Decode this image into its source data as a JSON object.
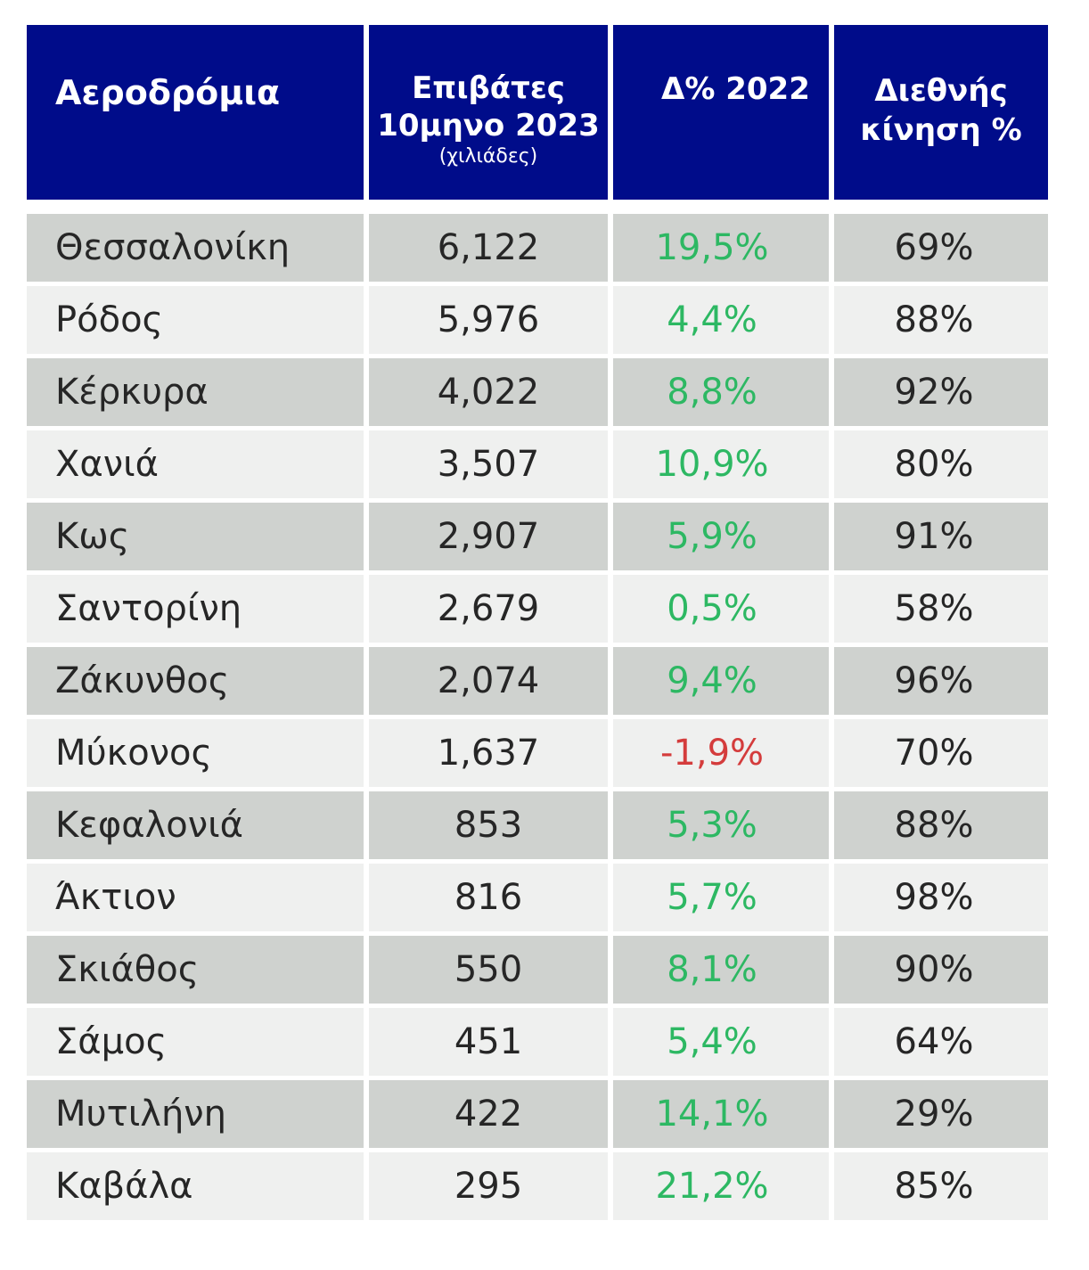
{
  "colors": {
    "header_bg": "#000c8a",
    "header_text": "#ffffff",
    "row_dark": "#cfd2cf",
    "row_light": "#eff0ef",
    "positive": "#2db863",
    "negative": "#d43c3c",
    "body_text": "#262626"
  },
  "chart_data": {
    "type": "table",
    "columns": [
      {
        "label": "Αεροδρόμια"
      },
      {
        "label_line1": "Επιβάτες",
        "label_line2": "10μηνο 2023",
        "unit": "(χιλιάδες)"
      },
      {
        "label": "Δ% 2022"
      },
      {
        "label_line1": "Διεθνής",
        "label_line2": "κίνηση %"
      }
    ],
    "rows": [
      {
        "airport": "Θεσσαλονίκη",
        "passengers": "6,122",
        "delta": "19,5%",
        "intl": "69%"
      },
      {
        "airport": "Ρόδος",
        "passengers": "5,976",
        "delta": "4,4%",
        "intl": "88%"
      },
      {
        "airport": "Κέρκυρα",
        "passengers": "4,022",
        "delta": "8,8%",
        "intl": "92%"
      },
      {
        "airport": "Χανιά",
        "passengers": "3,507",
        "delta": "10,9%",
        "intl": "80%"
      },
      {
        "airport": "Κως",
        "passengers": "2,907",
        "delta": "5,9%",
        "intl": "91%"
      },
      {
        "airport": "Σαντορίνη",
        "passengers": "2,679",
        "delta": "0,5%",
        "intl": "58%"
      },
      {
        "airport": "Ζάκυνθος",
        "passengers": "2,074",
        "delta": "9,4%",
        "intl": "96%"
      },
      {
        "airport": "Μύκονος",
        "passengers": "1,637",
        "delta": "-1,9%",
        "intl": "70%"
      },
      {
        "airport": "Κεφαλονιά",
        "passengers": "853",
        "delta": "5,3%",
        "intl": "88%"
      },
      {
        "airport": "Άκτιον",
        "passengers": "816",
        "delta": "5,7%",
        "intl": "98%"
      },
      {
        "airport": "Σκιάθος",
        "passengers": "550",
        "delta": "8,1%",
        "intl": "90%"
      },
      {
        "airport": "Σάμος",
        "passengers": "451",
        "delta": "5,4%",
        "intl": "64%"
      },
      {
        "airport": "Μυτιλήνη",
        "passengers": "422",
        "delta": "14,1%",
        "intl": "29%"
      },
      {
        "airport": "Καβάλα",
        "passengers": "295",
        "delta": "21,2%",
        "intl": "85%"
      }
    ]
  }
}
